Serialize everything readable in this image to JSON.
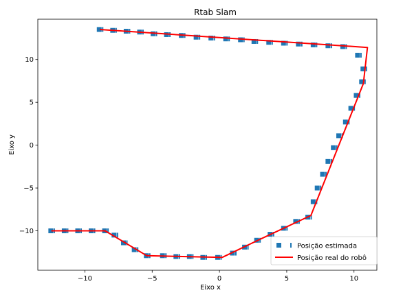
{
  "chart_data": {
    "type": "line",
    "title": "Rtab Slam",
    "xlabel": "Eixo x",
    "ylabel": "Eixo y",
    "xlim": [
      -13.5,
      11.7
    ],
    "ylim": [
      -14.6,
      14.7
    ],
    "xticks": [
      -10,
      -5,
      0,
      5,
      10
    ],
    "yticks": [
      -10,
      -5,
      0,
      5,
      10
    ],
    "grid": false,
    "legend_position": "bottom-right",
    "series": [
      {
        "name": "Posição estimada",
        "style": "markers",
        "marker": "square-dash",
        "color": "#1f77b4",
        "x": [
          -12.5,
          -11.5,
          -10.5,
          -9.5,
          -8.5,
          -7.8,
          -7.1,
          -6.3,
          -5.4,
          -4.2,
          -3.2,
          -2.2,
          -1.2,
          -0.1,
          1.0,
          1.9,
          2.8,
          3.8,
          4.8,
          5.7,
          6.6,
          7.0,
          7.3,
          7.7,
          8.1,
          8.5,
          8.9,
          9.4,
          9.8,
          10.2,
          10.6,
          10.7,
          10.3,
          9.2,
          8.1,
          7.0,
          5.9,
          4.8,
          3.7,
          2.6,
          1.6,
          0.5,
          -0.6,
          -1.7,
          -2.8,
          -3.9,
          -4.9,
          -5.9,
          -6.9,
          -7.9,
          -8.9
        ],
        "y": [
          -10.0,
          -10.0,
          -10.0,
          -10.0,
          -10.0,
          -10.5,
          -11.4,
          -12.2,
          -12.9,
          -12.9,
          -13.0,
          -13.0,
          -13.1,
          -13.1,
          -12.6,
          -11.9,
          -11.1,
          -10.4,
          -9.7,
          -8.9,
          -8.4,
          -6.6,
          -5.0,
          -3.4,
          -1.9,
          -0.3,
          1.1,
          2.7,
          4.3,
          5.8,
          7.4,
          8.9,
          10.5,
          11.5,
          11.6,
          11.7,
          11.8,
          11.9,
          12.0,
          12.1,
          12.3,
          12.4,
          12.5,
          12.6,
          12.8,
          12.9,
          13.0,
          13.2,
          13.3,
          13.4,
          13.5
        ]
      },
      {
        "name": "Posição real do robô",
        "style": "line",
        "color": "#ff0000",
        "x": [
          -12.5,
          -8.5,
          -5.4,
          0.2,
          3.0,
          6.8,
          10.7,
          11.0,
          -8.9
        ],
        "y": [
          -10.0,
          -10.0,
          -12.9,
          -13.1,
          -11.0,
          -8.2,
          7.2,
          11.4,
          13.5
        ]
      }
    ]
  }
}
